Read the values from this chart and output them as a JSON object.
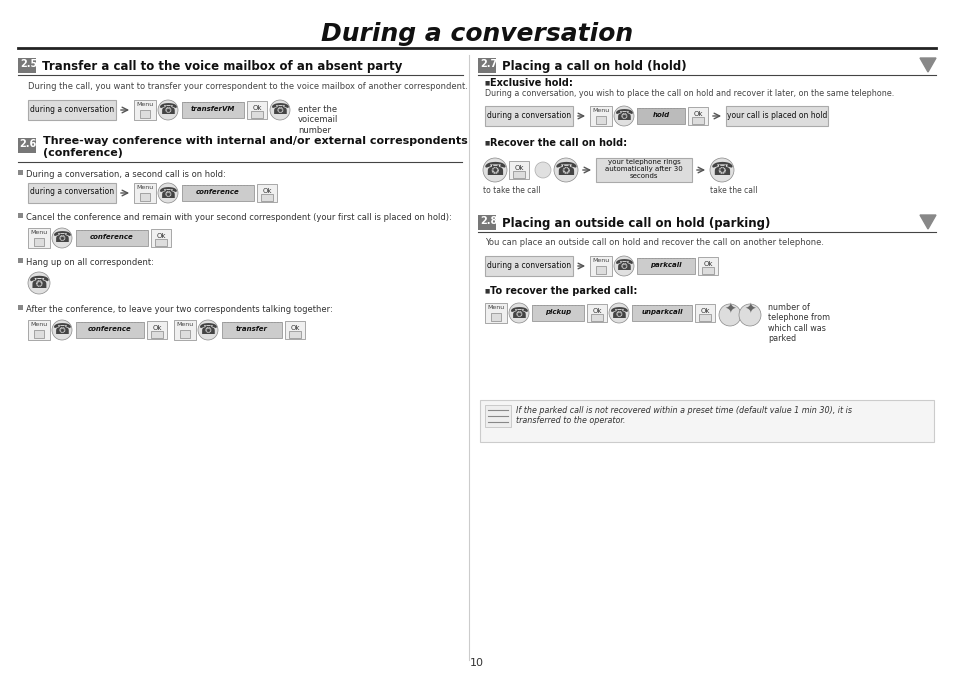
{
  "title": "During a conversation",
  "bg_color": "#ffffff",
  "page_number": "10",
  "title_fontsize": 18,
  "section25": {
    "num": "2.5",
    "heading": "Transfer a call to the voice mailbox of an absent party",
    "desc": "During the call, you want to transfer your correspondent to the voice mailbox of another correspondent.",
    "flow_label": "during a conversation",
    "note": "enter the\nvoicemail\nnumber",
    "btn_label": "transferVM"
  },
  "section26": {
    "num": "2.6",
    "heading_line1": "Three-way conference with internal and/or external correspondents",
    "heading_line2": "(conference)",
    "b1": "During a conversation, a second call is on hold:",
    "b2": "Cancel the conference and remain with your second correspondent (your first call is placed on hold):",
    "b3": "Hang up on all correspondent:",
    "b4": "After the conference, to leave your two correspondents talking together:"
  },
  "section27": {
    "num": "2.7",
    "heading": "Placing a call on hold (hold)",
    "sub1_bold": "Exclusive hold:",
    "sub1_text": "During a conversation, you wish to place the call on hold and recover it later, on the same telephone.",
    "flow_label": "during a conversation",
    "flow_end": "your call is placed on hold",
    "sub2_bold": "Recover the call on hold:",
    "label_left": "to take the call",
    "label_right": "take the call",
    "box_text": "your telephone rings\nautomatically after 30\nseconds",
    "hold_label": "hold"
  },
  "section28": {
    "num": "2.8",
    "heading": "Placing an outside call on hold (parking)",
    "desc": "You can place an outside call on hold and recover the call on another telephone.",
    "flow_label": "during a conversation",
    "park_btn": "parkcall",
    "sub_bold": "To recover the parked call:",
    "pickup_btn": "pickup",
    "unpark_btn": "unparkcall",
    "note": "number of\ntelephone from\nwhich call was\nparked",
    "info_text": "If the parked call is not recovered within a preset time (default value 1 min 30), it is\ntransferred to the operator."
  }
}
